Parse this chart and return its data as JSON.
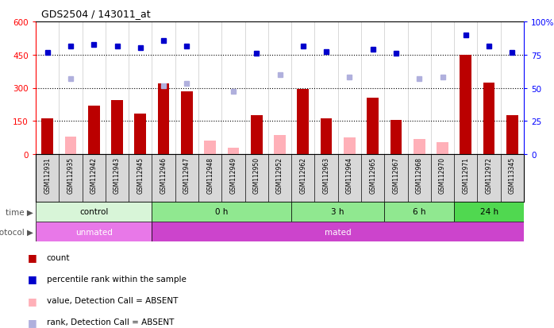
{
  "title": "GDS2504 / 143011_at",
  "samples": [
    "GSM112931",
    "GSM112935",
    "GSM112942",
    "GSM112943",
    "GSM112945",
    "GSM112946",
    "GSM112947",
    "GSM112948",
    "GSM112949",
    "GSM112950",
    "GSM112952",
    "GSM112962",
    "GSM112963",
    "GSM112964",
    "GSM112965",
    "GSM112967",
    "GSM112968",
    "GSM112970",
    "GSM112971",
    "GSM112972",
    "GSM113345"
  ],
  "count_values": [
    160,
    0,
    220,
    245,
    185,
    320,
    285,
    0,
    0,
    175,
    0,
    295,
    160,
    0,
    255,
    155,
    0,
    0,
    450,
    325,
    175
  ],
  "count_absent": [
    0,
    80,
    0,
    0,
    0,
    0,
    0,
    60,
    30,
    0,
    85,
    0,
    0,
    75,
    0,
    0,
    70,
    55,
    0,
    0,
    0
  ],
  "blue_rank": [
    460,
    490,
    495,
    490,
    480,
    515,
    490,
    0,
    0,
    458,
    0,
    490,
    462,
    0,
    475,
    455,
    0,
    0,
    540,
    490,
    460
  ],
  "rank_absent": [
    0,
    340,
    0,
    0,
    0,
    310,
    320,
    0,
    285,
    0,
    360,
    0,
    0,
    350,
    0,
    0,
    340,
    350,
    0,
    0,
    0
  ],
  "time_groups": [
    {
      "label": "control",
      "start": 0,
      "end": 5
    },
    {
      "label": "0 h",
      "start": 5,
      "end": 11
    },
    {
      "label": "3 h",
      "start": 11,
      "end": 15
    },
    {
      "label": "6 h",
      "start": 15,
      "end": 18
    },
    {
      "label": "24 h",
      "start": 18,
      "end": 21
    }
  ],
  "protocol_groups": [
    {
      "label": "unmated",
      "start": 0,
      "end": 5
    },
    {
      "label": "mated",
      "start": 5,
      "end": 21
    }
  ],
  "time_colors": [
    "#d8f5d8",
    "#90e890",
    "#90e890",
    "#90e890",
    "#50d850"
  ],
  "prot_colors": [
    "#e878e8",
    "#cc44cc"
  ],
  "ylim_left": [
    0,
    600
  ],
  "ylim_right": [
    0,
    100
  ],
  "yticks_left": [
    0,
    150,
    300,
    450,
    600
  ],
  "yticks_right": [
    0,
    25,
    50,
    75,
    100
  ],
  "bar_color_count": "#bb0000",
  "bar_color_absent": "#ffb0b8",
  "dot_color_rank": "#0000cc",
  "dot_color_absent": "#b0b0dd",
  "bg_color": "#ffffff",
  "xticklabel_bg": "#d8d8d8"
}
